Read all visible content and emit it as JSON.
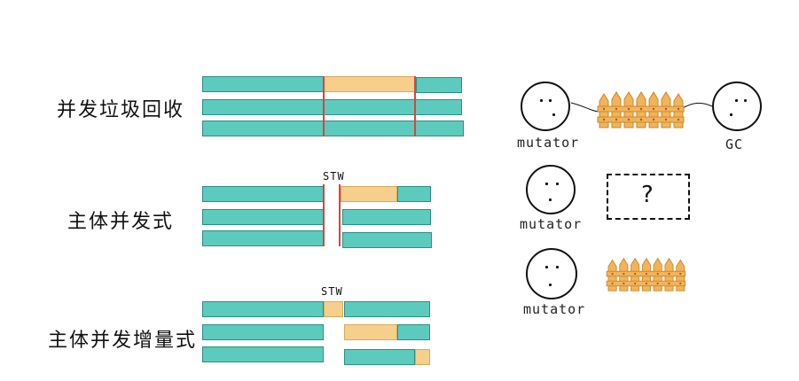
{
  "watermark": "",
  "rows": [
    {
      "label": "并发垃圾回收"
    },
    {
      "label": "主体并发式",
      "stw": "STW"
    },
    {
      "label": "主体并发增量式",
      "stw": "STW"
    }
  ],
  "actors": {
    "mutator_label": "mutator",
    "gc_label": "GC",
    "unknown_mark": "?"
  },
  "colors": {
    "thread": "#5ccbbd",
    "gc_work": "#f6cf8d",
    "stw_line": "#e0413b",
    "fence": "#f2b35a"
  }
}
